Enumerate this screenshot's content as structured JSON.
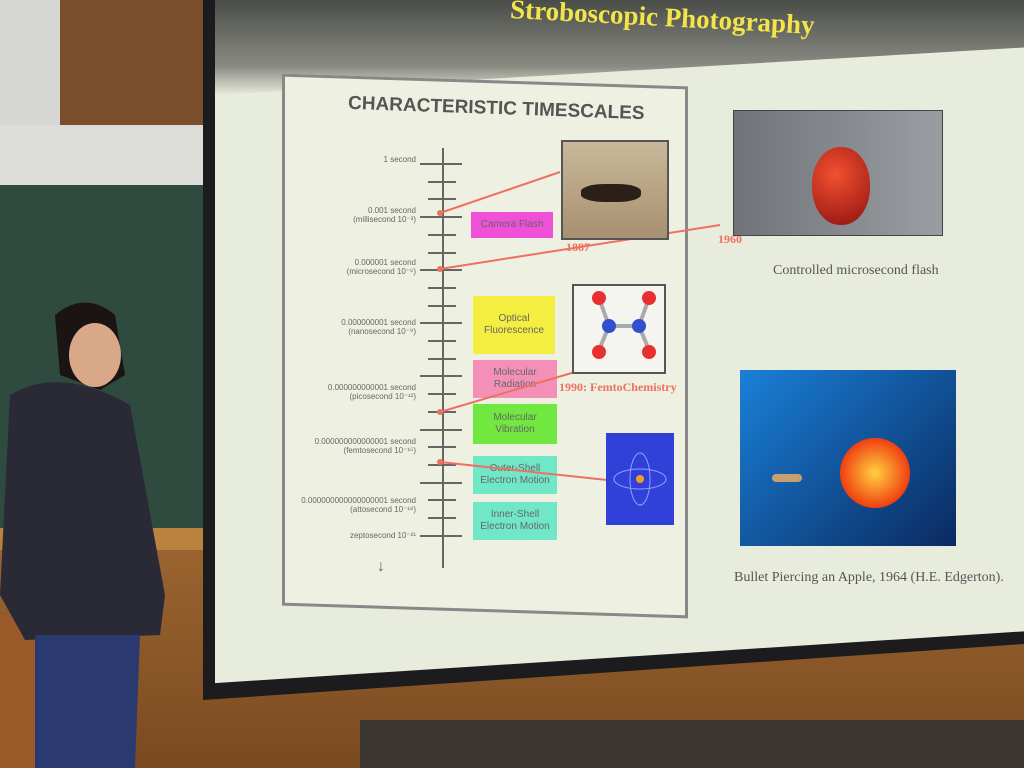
{
  "slide": {
    "title": "Stroboscopic Photography",
    "panel_title": "CHARACTERISTIC TIMESCALES",
    "timescale_labels": [
      {
        "line1": "1 second",
        "line2": ""
      },
      {
        "line1": "0.001 second",
        "line2": "(millisecond 10⁻³)"
      },
      {
        "line1": "0.000001 second",
        "line2": "(microsecond 10⁻⁶)"
      },
      {
        "line1": "0.000000001 second",
        "line2": "(nanosecond 10⁻⁹)"
      },
      {
        "line1": "0.000000000001 second",
        "line2": "(picosecond 10⁻¹²)"
      },
      {
        "line1": "0.000000000000001 second",
        "line2": "(femtosecond 10⁻¹⁵)"
      },
      {
        "line1": "0.000000000000000001 second",
        "line2": "(attosecond 10⁻¹⁸)"
      },
      {
        "line1": "zeptosecond 10⁻²¹",
        "line2": ""
      }
    ],
    "boxes": [
      {
        "label": "Camera Flash",
        "color": "#f050d8"
      },
      {
        "label": "Optical Fluorescence",
        "color": "#f4ee40"
      },
      {
        "label": "Molecular Radiation",
        "color": "#f490b8"
      },
      {
        "label": "Molecular Vibration",
        "color": "#70e840"
      },
      {
        "label": "Outer-Shell Electron Motion",
        "color": "#70e8c8"
      },
      {
        "label": "Inner-Shell Electron Motion",
        "color": "#70e8c8"
      }
    ],
    "annotations": {
      "year_1887": "1887",
      "year_1960": "1960",
      "femto": "1990: FemtoChemistry"
    },
    "captions": {
      "apple_flash": "Controlled microsecond flash",
      "bullet": "Bullet Piercing an Apple, 1964 (H.E. Edgerton)."
    },
    "accent_color": "#f07060"
  }
}
